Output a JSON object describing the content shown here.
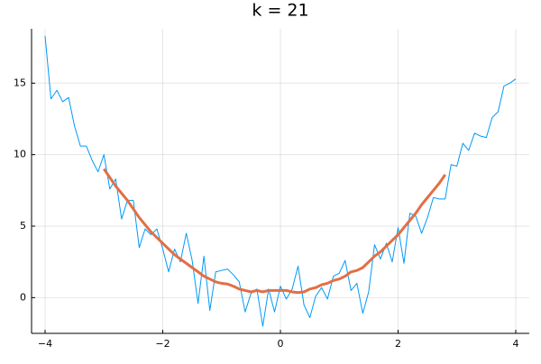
{
  "chart_data": {
    "type": "line",
    "title": "k = 21",
    "x": [
      -4.0,
      -3.9,
      -3.8,
      -3.7,
      -3.6,
      -3.5,
      -3.4,
      -3.3,
      -3.2,
      -3.1,
      -3.0,
      -2.9,
      -2.8,
      -2.7,
      -2.6,
      -2.5,
      -2.4,
      -2.3,
      -2.2,
      -2.1,
      -2.0,
      -1.9,
      -1.8,
      -1.7,
      -1.6,
      -1.5,
      -1.4,
      -1.3,
      -1.2,
      -1.1,
      -1.0,
      -0.9,
      -0.8,
      -0.7,
      -0.6,
      -0.5,
      -0.4,
      -0.3,
      -0.2,
      -0.1,
      0.0,
      0.1,
      0.2,
      0.3,
      0.4,
      0.5,
      0.6,
      0.7,
      0.8,
      0.9,
      1.0,
      1.1,
      1.2,
      1.3,
      1.4,
      1.5,
      1.6,
      1.7,
      1.8,
      1.9,
      2.0,
      2.1,
      2.2,
      2.3,
      2.4,
      2.5,
      2.6,
      2.7,
      2.8,
      2.9,
      3.0,
      3.1,
      3.2,
      3.3,
      3.4,
      3.5,
      3.6,
      3.7,
      3.8,
      3.9,
      4.0
    ],
    "series": [
      {
        "color": "#009af9",
        "width": 1,
        "values": [
          18.3,
          13.9,
          14.5,
          13.7,
          14.0,
          12.0,
          10.6,
          10.6,
          9.6,
          8.8,
          10.0,
          7.6,
          8.3,
          5.5,
          6.8,
          6.8,
          3.5,
          4.8,
          4.4,
          4.8,
          3.4,
          1.8,
          3.4,
          2.5,
          4.5,
          2.6,
          -0.4,
          2.9,
          -0.9,
          1.8,
          1.9,
          2.0,
          1.6,
          1.1,
          -1.0,
          0.3,
          0.6,
          -2.0,
          0.6,
          -1.0,
          0.8,
          -0.1,
          0.6,
          2.2,
          -0.5,
          -1.4,
          0.1,
          0.7,
          -0.1,
          1.5,
          1.7,
          2.6,
          0.5,
          1.0,
          -1.1,
          0.4,
          3.7,
          2.7,
          3.8,
          2.5,
          4.9,
          2.4,
          5.9,
          5.7,
          4.5,
          5.6,
          7.0,
          6.9,
          6.9,
          9.3,
          9.2,
          10.8,
          10.3,
          11.5,
          11.3,
          11.2,
          12.6,
          13.0,
          14.8,
          15.0,
          15.3
        ]
      },
      {
        "color": "#e26f46",
        "width": 3,
        "values": [
          null,
          null,
          null,
          null,
          null,
          null,
          null,
          null,
          null,
          null,
          9.0,
          8.4,
          7.8,
          7.3,
          6.8,
          6.2,
          5.6,
          5.1,
          4.6,
          4.2,
          3.8,
          3.4,
          3.0,
          2.7,
          2.4,
          2.1,
          1.8,
          1.5,
          1.3,
          1.1,
          1.0,
          0.95,
          0.8,
          0.6,
          0.5,
          0.4,
          0.5,
          0.4,
          0.5,
          0.5,
          0.5,
          0.5,
          0.4,
          0.35,
          0.4,
          0.6,
          0.7,
          0.9,
          1.0,
          1.2,
          1.3,
          1.5,
          1.8,
          1.9,
          2.1,
          2.5,
          2.9,
          3.2,
          3.6,
          4.0,
          4.4,
          4.9,
          5.4,
          5.9,
          6.5,
          7.0,
          7.5,
          8.0,
          8.6,
          null,
          null,
          null,
          null,
          null,
          null,
          null,
          null,
          null,
          null,
          null,
          null
        ]
      }
    ],
    "xlim": [
      -4.23,
      4.23
    ],
    "ylim": [
      -2.5,
      18.8
    ],
    "xticks": [
      {
        "value": -4,
        "label": "−4"
      },
      {
        "value": -2,
        "label": "−2"
      },
      0,
      2,
      4
    ],
    "yticks": [
      0,
      5,
      10,
      15
    ],
    "grid": true
  }
}
